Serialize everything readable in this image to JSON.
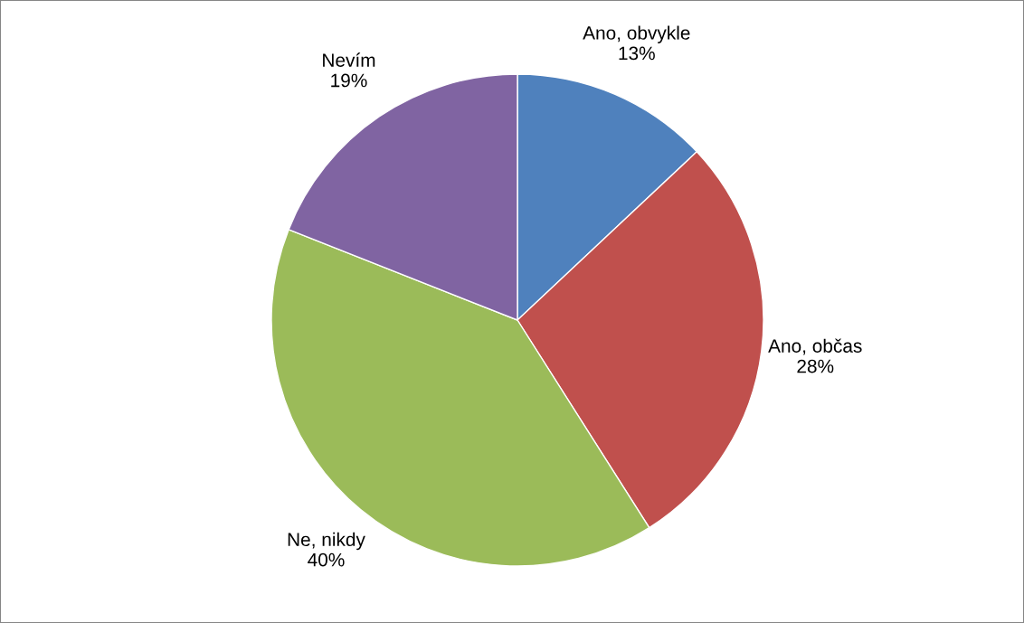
{
  "chart_data": {
    "type": "pie",
    "categories": [
      "Ano, obvykle",
      "Ano, občas",
      "Ne, nikdy",
      "Nevím"
    ],
    "values": [
      13,
      28,
      40,
      19
    ],
    "value_labels": [
      "13%",
      "28%",
      "40%",
      "19%"
    ],
    "colors": [
      "#4f81bd",
      "#c0504d",
      "#9bbb59",
      "#8064a2"
    ],
    "legend": false
  }
}
